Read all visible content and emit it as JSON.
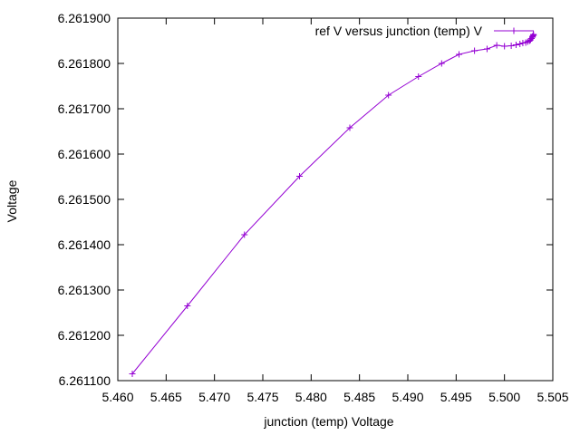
{
  "chart_data": {
    "type": "line",
    "title": "",
    "xlabel": "junction (temp) Voltage",
    "ylabel": "Voltage",
    "xlim": [
      5.46,
      5.505
    ],
    "ylim": [
      6.2611,
      6.2619
    ],
    "xticks": [
      "5.460",
      "5.465",
      "5.470",
      "5.475",
      "5.480",
      "5.485",
      "5.490",
      "5.495",
      "5.500",
      "5.505"
    ],
    "yticks": [
      "6.261100",
      "6.261200",
      "6.261300",
      "6.261400",
      "6.261500",
      "6.261600",
      "6.261700",
      "6.261800",
      "6.261900"
    ],
    "grid": false,
    "legend_position": "top-right",
    "series": [
      {
        "name": "ref V versus junction (temp) V",
        "color": "#9400d3",
        "marker": "plus",
        "points": [
          [
            5.4615,
            6.261115
          ],
          [
            5.4672,
            6.261265
          ],
          [
            5.4731,
            6.261422
          ],
          [
            5.4788,
            6.261551
          ],
          [
            5.484,
            6.261658
          ],
          [
            5.488,
            6.26173
          ],
          [
            5.4911,
            6.261771
          ],
          [
            5.4935,
            6.2618
          ],
          [
            5.4953,
            6.26182
          ],
          [
            5.4969,
            6.261828
          ],
          [
            5.4982,
            6.261832
          ],
          [
            5.4992,
            6.26184
          ],
          [
            5.5,
            6.261838
          ],
          [
            5.5007,
            6.261839
          ],
          [
            5.5012,
            6.261841
          ],
          [
            5.5016,
            6.261843
          ],
          [
            5.5019,
            6.261845
          ],
          [
            5.5022,
            6.261846
          ],
          [
            5.5024,
            6.261848
          ],
          [
            5.5026,
            6.26185
          ],
          [
            5.5027,
            6.261852
          ],
          [
            5.5028,
            6.261855
          ],
          [
            5.5029,
            6.261858
          ],
          [
            5.5029,
            6.26186
          ],
          [
            5.503,
            6.261862
          ],
          [
            5.503,
            6.261864
          ]
        ]
      }
    ]
  }
}
